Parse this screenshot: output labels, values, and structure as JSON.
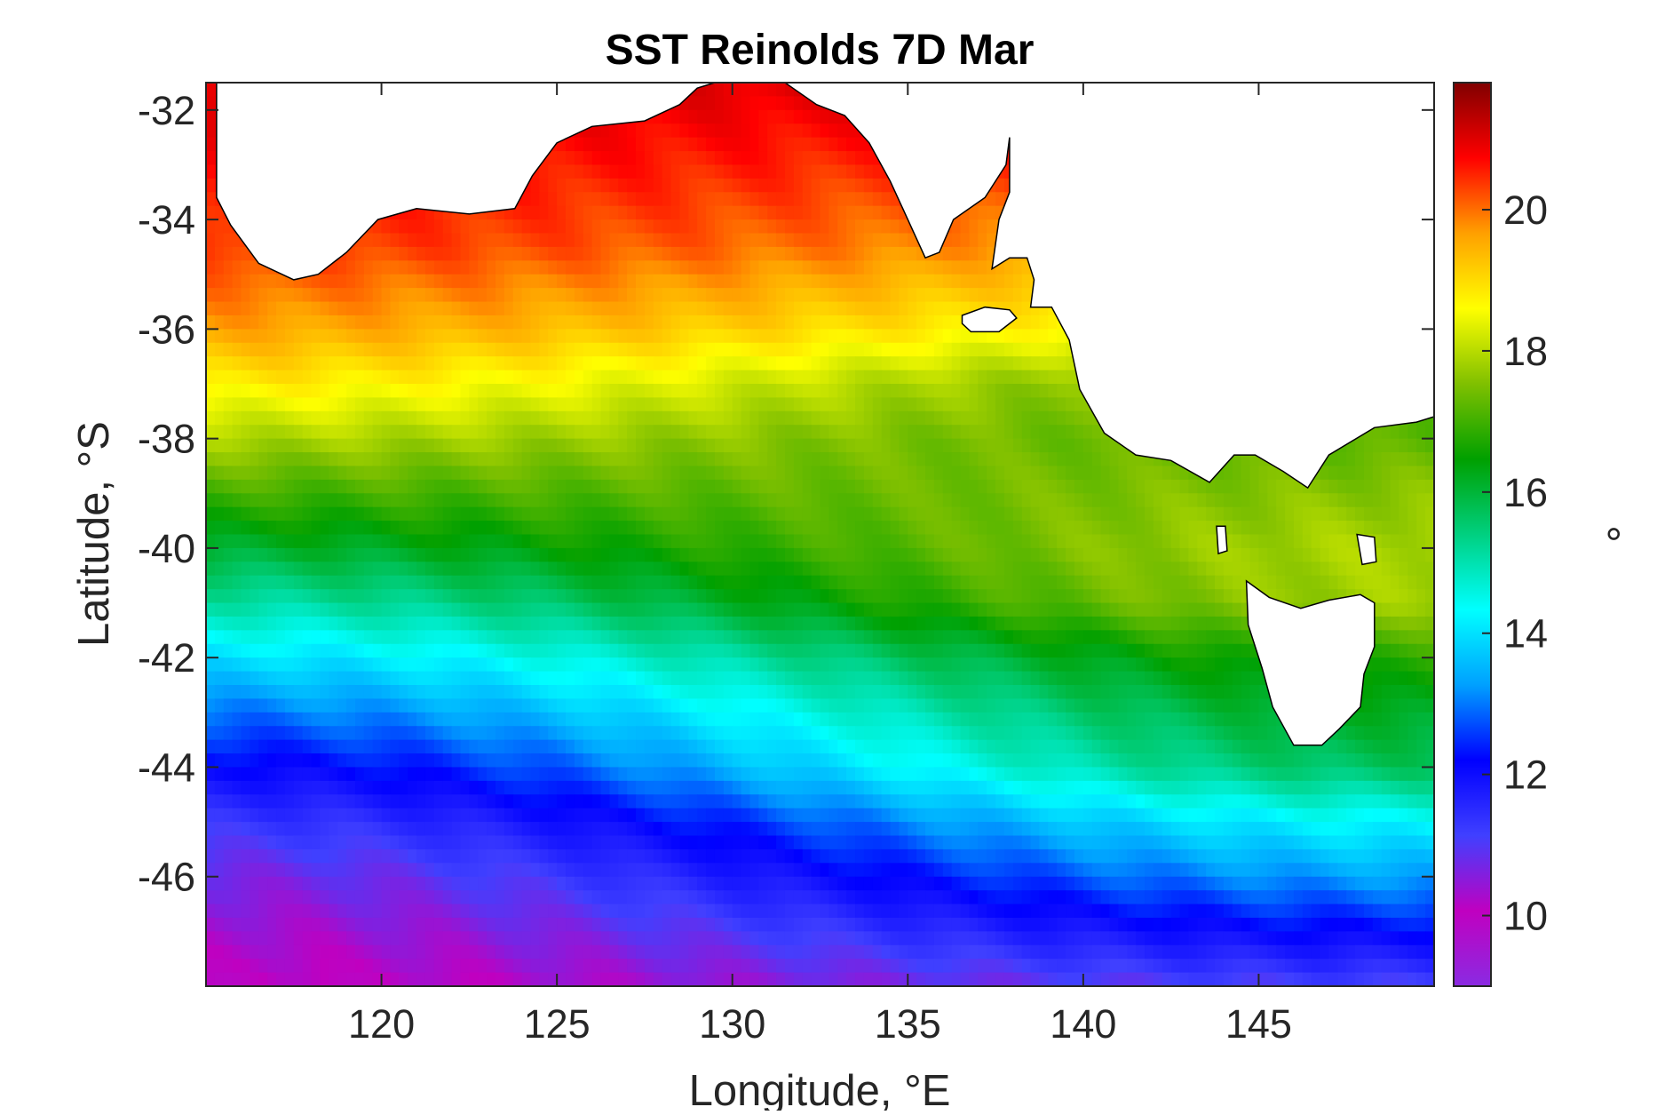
{
  "chart_data": {
    "type": "heatmap",
    "title": "SST Reinolds 7D Mar",
    "xlabel": "Longitude, °E",
    "ylabel": "Latitude, °S",
    "colorbar_label": "°",
    "xlim": [
      115,
      150
    ],
    "ylim": [
      -48,
      -31.5
    ],
    "x_ticks": [
      120,
      125,
      130,
      135,
      140,
      145
    ],
    "x_tick_labels": [
      "120",
      "125",
      "130",
      "135",
      "140",
      "145"
    ],
    "y_ticks": [
      -32,
      -34,
      -36,
      -38,
      -40,
      -42,
      -44,
      -46
    ],
    "y_tick_labels": [
      "-32",
      "-34",
      "-36",
      "-38",
      "-40",
      "-42",
      "-44",
      "-46"
    ],
    "colorbar_range": [
      9,
      21.8
    ],
    "colorbar_ticks": [
      10,
      12,
      14,
      16,
      18,
      20
    ],
    "colorbar_tick_labels": [
      "10",
      "12",
      "14",
      "16",
      "18",
      "20"
    ],
    "colormap": [
      "#8a2be2",
      "#c000c0",
      "#4040ff",
      "#0000ff",
      "#00a0ff",
      "#00ffff",
      "#00d080",
      "#00a000",
      "#80c000",
      "#ffff00",
      "#ffa000",
      "#ff0000",
      "#800000"
    ],
    "land_color": "#ffffff",
    "coastline_color": "#000000",
    "grid": false,
    "colorbar_placement": "right",
    "sst_latitude_profile": {
      "lat": [
        -31.5,
        -33,
        -34.5,
        -36,
        -37,
        -38,
        -39,
        -40,
        -41,
        -42,
        -43,
        -44,
        -45,
        -46,
        -47,
        -48
      ],
      "sst_west": [
        21.0,
        20.7,
        20.4,
        19.6,
        18.8,
        17.9,
        17.0,
        16.1,
        15.1,
        14.0,
        13.0,
        12.1,
        11.3,
        10.7,
        10.3,
        10.0
      ],
      "sst_east": [
        21.0,
        20.3,
        19.5,
        18.4,
        17.3,
        17.2,
        17.6,
        17.9,
        17.8,
        16.8,
        16.2,
        15.7,
        14.3,
        13.3,
        12.2,
        11.1
      ]
    }
  }
}
